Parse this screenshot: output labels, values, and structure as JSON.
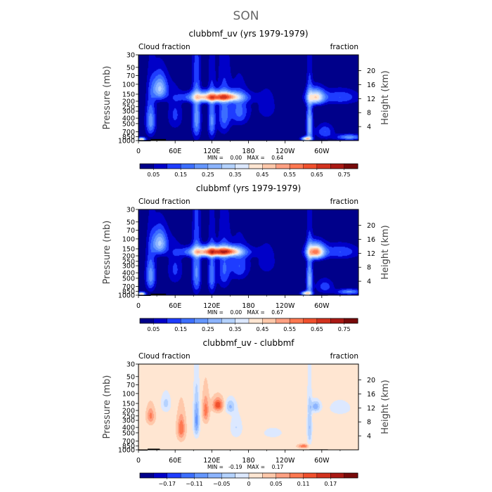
{
  "figure_title": "SON",
  "chart_data": [
    {
      "type": "heatmap",
      "title": "clubbmf_uv (yrs 1979-1979)",
      "left_label": "Cloud fraction",
      "right_label": "fraction",
      "xlabel": "",
      "ylabel": "Pressure (mb)",
      "ylabel_right": "Height (km)",
      "x_ticks": [
        {
          "lon": 0,
          "label": "0"
        },
        {
          "lon": 60,
          "label": "60E"
        },
        {
          "lon": 120,
          "label": "120E"
        },
        {
          "lon": 180,
          "label": "180"
        },
        {
          "lon": 240,
          "label": "120W"
        },
        {
          "lon": 300,
          "label": "60W"
        }
      ],
      "xlim": [
        0,
        360
      ],
      "y_ticks": [
        30,
        50,
        70,
        100,
        150,
        200,
        250,
        300,
        400,
        500,
        700,
        850,
        1000
      ],
      "ylim": [
        1000,
        30
      ],
      "height_ticks": [
        4,
        8,
        12,
        16,
        20
      ],
      "stats": "MIN =    0.00   MAX =    0.64",
      "colorbar": {
        "colors": [
          "#00008a",
          "#0000c8",
          "#1e3cff",
          "#3c6eff",
          "#6496ff",
          "#8cb4ff",
          "#b4d2ff",
          "#dce8ff",
          "#ffe6d2",
          "#ffc8aa",
          "#ffa082",
          "#ff7850",
          "#f0502d",
          "#d2321e",
          "#aa1914",
          "#780a0a"
        ],
        "labels": [
          "0.05",
          "0.15",
          "0.25",
          "0.35",
          "0.45",
          "0.55",
          "0.65",
          "0.75"
        ]
      },
      "value_range": [
        0,
        0.8
      ],
      "field": {
        "background": 0.01,
        "features": [
          {
            "lon": 20,
            "p": 450,
            "slon": 8,
            "sp": 320,
            "amp": 0.22
          },
          {
            "lon": 5,
            "p": 950,
            "slon": 6,
            "sp": 70,
            "amp": 0.45
          },
          {
            "lon": 35,
            "p": 120,
            "slon": 12,
            "sp": 60,
            "amp": 0.3
          },
          {
            "lon": 125,
            "p": 170,
            "slon": 40,
            "sp": 35,
            "amp": 0.55
          },
          {
            "lon": 150,
            "p": 165,
            "slon": 15,
            "sp": 25,
            "amp": 0.12
          },
          {
            "lon": 95,
            "p": 400,
            "slon": 7,
            "sp": 450,
            "amp": 0.22
          },
          {
            "lon": 120,
            "p": 450,
            "slon": 6,
            "sp": 400,
            "amp": 0.2
          },
          {
            "lon": 140,
            "p": 350,
            "slon": 10,
            "sp": 350,
            "amp": 0.16
          },
          {
            "lon": 165,
            "p": 300,
            "slon": 15,
            "sp": 200,
            "amp": 0.16
          },
          {
            "lon": 60,
            "p": 350,
            "slon": 12,
            "sp": 250,
            "amp": 0.1
          },
          {
            "lon": 290,
            "p": 170,
            "slon": 14,
            "sp": 50,
            "amp": 0.42
          },
          {
            "lon": 280,
            "p": 550,
            "slon": 5,
            "sp": 450,
            "amp": 0.28
          },
          {
            "lon": 275,
            "p": 930,
            "slon": 8,
            "sp": 80,
            "amp": 0.42
          },
          {
            "lon": 305,
            "p": 700,
            "slon": 14,
            "sp": 200,
            "amp": 0.14
          },
          {
            "lon": 345,
            "p": 870,
            "slon": 20,
            "sp": 100,
            "amp": 0.22
          },
          {
            "lon": 330,
            "p": 170,
            "slon": 30,
            "sp": 50,
            "amp": 0.14
          },
          {
            "lon": 210,
            "p": 250,
            "slon": 20,
            "sp": 200,
            "amp": 0.06
          }
        ]
      },
      "terrain": [
        [
          0,
          20,
          1000
        ],
        [
          20,
          45,
          940
        ],
        [
          280,
          310,
          990
        ]
      ]
    },
    {
      "type": "heatmap",
      "title": "clubbmf (yrs 1979-1979)",
      "left_label": "Cloud fraction",
      "right_label": "fraction",
      "xlabel": "",
      "ylabel": "Pressure (mb)",
      "ylabel_right": "Height (km)",
      "x_ticks": [
        {
          "lon": 0,
          "label": "0"
        },
        {
          "lon": 60,
          "label": "60E"
        },
        {
          "lon": 120,
          "label": "120E"
        },
        {
          "lon": 180,
          "label": "180"
        },
        {
          "lon": 240,
          "label": "120W"
        },
        {
          "lon": 300,
          "label": "60W"
        }
      ],
      "xlim": [
        0,
        360
      ],
      "y_ticks": [
        30,
        50,
        70,
        100,
        150,
        200,
        250,
        300,
        400,
        500,
        700,
        850,
        1000
      ],
      "ylim": [
        1000,
        30
      ],
      "height_ticks": [
        4,
        8,
        12,
        16,
        20
      ],
      "stats": "MIN =    0.00   MAX =    0.67",
      "colorbar": {
        "colors": [
          "#00008a",
          "#0000c8",
          "#1e3cff",
          "#3c6eff",
          "#6496ff",
          "#8cb4ff",
          "#b4d2ff",
          "#dce8ff",
          "#ffe6d2",
          "#ffc8aa",
          "#ffa082",
          "#ff7850",
          "#f0502d",
          "#d2321e",
          "#aa1914",
          "#780a0a"
        ],
        "labels": [
          "0.05",
          "0.15",
          "0.25",
          "0.35",
          "0.45",
          "0.55",
          "0.65",
          "0.75"
        ]
      },
      "value_range": [
        0,
        0.8
      ],
      "field": {
        "background": 0.01,
        "features": [
          {
            "lon": 20,
            "p": 450,
            "slon": 8,
            "sp": 320,
            "amp": 0.22
          },
          {
            "lon": 5,
            "p": 950,
            "slon": 6,
            "sp": 70,
            "amp": 0.45
          },
          {
            "lon": 35,
            "p": 120,
            "slon": 12,
            "sp": 60,
            "amp": 0.3
          },
          {
            "lon": 125,
            "p": 170,
            "slon": 40,
            "sp": 35,
            "amp": 0.6
          },
          {
            "lon": 150,
            "p": 165,
            "slon": 15,
            "sp": 25,
            "amp": 0.14
          },
          {
            "lon": 95,
            "p": 400,
            "slon": 7,
            "sp": 450,
            "amp": 0.2
          },
          {
            "lon": 120,
            "p": 450,
            "slon": 6,
            "sp": 400,
            "amp": 0.18
          },
          {
            "lon": 140,
            "p": 350,
            "slon": 10,
            "sp": 350,
            "amp": 0.14
          },
          {
            "lon": 165,
            "p": 300,
            "slon": 15,
            "sp": 200,
            "amp": 0.14
          },
          {
            "lon": 60,
            "p": 350,
            "slon": 12,
            "sp": 250,
            "amp": 0.1
          },
          {
            "lon": 290,
            "p": 170,
            "slon": 14,
            "sp": 50,
            "amp": 0.55
          },
          {
            "lon": 280,
            "p": 550,
            "slon": 5,
            "sp": 450,
            "amp": 0.26
          },
          {
            "lon": 275,
            "p": 930,
            "slon": 8,
            "sp": 80,
            "amp": 0.42
          },
          {
            "lon": 305,
            "p": 700,
            "slon": 14,
            "sp": 200,
            "amp": 0.12
          },
          {
            "lon": 345,
            "p": 870,
            "slon": 20,
            "sp": 100,
            "amp": 0.2
          },
          {
            "lon": 330,
            "p": 170,
            "slon": 30,
            "sp": 50,
            "amp": 0.14
          },
          {
            "lon": 210,
            "p": 250,
            "slon": 20,
            "sp": 200,
            "amp": 0.06
          }
        ]
      },
      "terrain": [
        [
          0,
          20,
          1000
        ],
        [
          20,
          45,
          940
        ],
        [
          280,
          310,
          990
        ]
      ]
    },
    {
      "type": "heatmap",
      "title": "clubbmf_uv - clubbmf",
      "left_label": "Cloud fraction",
      "right_label": "fraction",
      "xlabel": "",
      "ylabel": "Pressure (mb)",
      "ylabel_right": "Height (km)",
      "x_ticks": [
        {
          "lon": 0,
          "label": "0"
        },
        {
          "lon": 60,
          "label": "60E"
        },
        {
          "lon": 120,
          "label": "120E"
        },
        {
          "lon": 180,
          "label": "180"
        },
        {
          "lon": 240,
          "label": "120W"
        },
        {
          "lon": 300,
          "label": "60W"
        }
      ],
      "xlim": [
        0,
        360
      ],
      "y_ticks": [
        30,
        50,
        70,
        100,
        150,
        200,
        250,
        300,
        400,
        500,
        700,
        850,
        1000
      ],
      "ylim": [
        1000,
        30
      ],
      "height_ticks": [
        4,
        8,
        12,
        16,
        20
      ],
      "stats": "MIN =   -0.19   MAX =    0.17",
      "colorbar": {
        "colors": [
          "#00008a",
          "#0000c8",
          "#1e3cff",
          "#3c6eff",
          "#6496ff",
          "#8cb4ff",
          "#b4d2ff",
          "#dce8ff",
          "#ffe6d2",
          "#ffc8aa",
          "#ffa082",
          "#ff7850",
          "#f0502d",
          "#d2321e",
          "#aa1914",
          "#780a0a"
        ],
        "labels": [
          "−0.17",
          "−0.11",
          "−0.05",
          "0",
          "0.05",
          "0.11",
          "0.17"
        ]
      },
      "value_range": [
        -0.24,
        0.24
      ],
      "field": {
        "background": 0.02,
        "features": [
          {
            "lon": 70,
            "p": 420,
            "slon": 6,
            "sp": 200,
            "amp": 0.1
          },
          {
            "lon": 95,
            "p": 300,
            "slon": 5,
            "sp": 250,
            "amp": -0.12
          },
          {
            "lon": 110,
            "p": 200,
            "slon": 5,
            "sp": 100,
            "amp": 0.09
          },
          {
            "lon": 130,
            "p": 160,
            "slon": 8,
            "sp": 40,
            "amp": 0.13
          },
          {
            "lon": 150,
            "p": 170,
            "slon": 8,
            "sp": 50,
            "amp": -0.08
          },
          {
            "lon": 160,
            "p": 400,
            "slon": 10,
            "sp": 200,
            "amp": -0.05
          },
          {
            "lon": 20,
            "p": 250,
            "slon": 6,
            "sp": 80,
            "amp": 0.08
          },
          {
            "lon": 45,
            "p": 150,
            "slon": 8,
            "sp": 60,
            "amp": -0.06
          },
          {
            "lon": 280,
            "p": 400,
            "slon": 4,
            "sp": 400,
            "amp": -0.08
          },
          {
            "lon": 270,
            "p": 860,
            "slon": 8,
            "sp": 60,
            "amp": 0.1
          },
          {
            "lon": 290,
            "p": 170,
            "slon": 8,
            "sp": 40,
            "amp": -0.1
          },
          {
            "lon": 330,
            "p": 180,
            "slon": 20,
            "sp": 60,
            "amp": -0.04
          },
          {
            "lon": 220,
            "p": 500,
            "slon": 30,
            "sp": 200,
            "amp": -0.025
          }
        ]
      },
      "terrain": [
        [
          0,
          15,
          1000
        ],
        [
          15,
          35,
          955
        ],
        [
          280,
          310,
          980
        ]
      ]
    }
  ]
}
